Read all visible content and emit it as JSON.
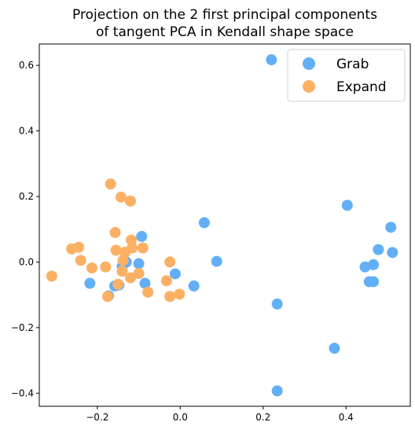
{
  "chart_data": {
    "type": "scatter",
    "title_lines": [
      "Projection on the 2 first principal components",
      "of tangent PCA in Kendall shape space"
    ],
    "xlabel": "",
    "ylabel": "",
    "xlim": [
      -0.34,
      0.555
    ],
    "ylim": [
      -0.44,
      0.665
    ],
    "xticks": [
      -0.2,
      0.0,
      0.2,
      0.4
    ],
    "xtick_labels": [
      "−0.2",
      "0.0",
      "0.2",
      "0.4"
    ],
    "yticks": [
      -0.4,
      -0.2,
      0.0,
      0.2,
      0.4,
      0.6
    ],
    "ytick_labels": [
      "−0.4",
      "−0.2",
      "0.0",
      "0.2",
      "0.4",
      "0.6"
    ],
    "grid": false,
    "legend_position": "top-right",
    "series": [
      {
        "name": "Grab",
        "color": "#63aff7",
        "points": [
          [
            0.22,
            0.617
          ],
          [
            0.403,
            0.173
          ],
          [
            0.058,
            0.12
          ],
          [
            0.508,
            0.106
          ],
          [
            0.478,
            0.038
          ],
          [
            0.512,
            0.029
          ],
          [
            0.088,
            0.002
          ],
          [
            0.466,
            -0.008
          ],
          [
            0.446,
            -0.015
          ],
          [
            0.456,
            -0.06
          ],
          [
            0.466,
            -0.06
          ],
          [
            0.234,
            -0.128
          ],
          [
            0.372,
            -0.263
          ],
          [
            0.234,
            -0.393
          ],
          [
            -0.093,
            0.078
          ],
          [
            -0.13,
            0.0
          ],
          [
            -0.14,
            -0.013
          ],
          [
            -0.1,
            -0.005
          ],
          [
            -0.218,
            -0.065
          ],
          [
            -0.158,
            -0.073
          ],
          [
            -0.085,
            -0.065
          ],
          [
            -0.012,
            -0.036
          ],
          [
            0.033,
            -0.073
          ],
          [
            -0.173,
            -0.103
          ],
          [
            -0.148,
            -0.07
          ]
        ]
      },
      {
        "name": "Expand",
        "color": "#fbb063",
        "points": [
          [
            -0.168,
            0.238
          ],
          [
            -0.143,
            0.198
          ],
          [
            -0.12,
            0.186
          ],
          [
            -0.157,
            0.09
          ],
          [
            -0.118,
            0.067
          ],
          [
            -0.09,
            0.043
          ],
          [
            -0.116,
            0.043
          ],
          [
            -0.155,
            0.036
          ],
          [
            -0.133,
            0.03
          ],
          [
            -0.262,
            0.04
          ],
          [
            -0.245,
            0.045
          ],
          [
            -0.24,
            0.005
          ],
          [
            -0.138,
            0.005
          ],
          [
            -0.213,
            -0.018
          ],
          [
            -0.18,
            -0.015
          ],
          [
            -0.14,
            -0.028
          ],
          [
            -0.1,
            -0.035
          ],
          [
            -0.12,
            -0.048
          ],
          [
            -0.31,
            -0.043
          ],
          [
            -0.15,
            -0.068
          ],
          [
            -0.025,
            0.0
          ],
          [
            -0.033,
            -0.057
          ],
          [
            -0.078,
            -0.092
          ],
          [
            -0.002,
            -0.098
          ],
          [
            -0.025,
            -0.105
          ],
          [
            -0.175,
            -0.105
          ]
        ]
      }
    ]
  }
}
